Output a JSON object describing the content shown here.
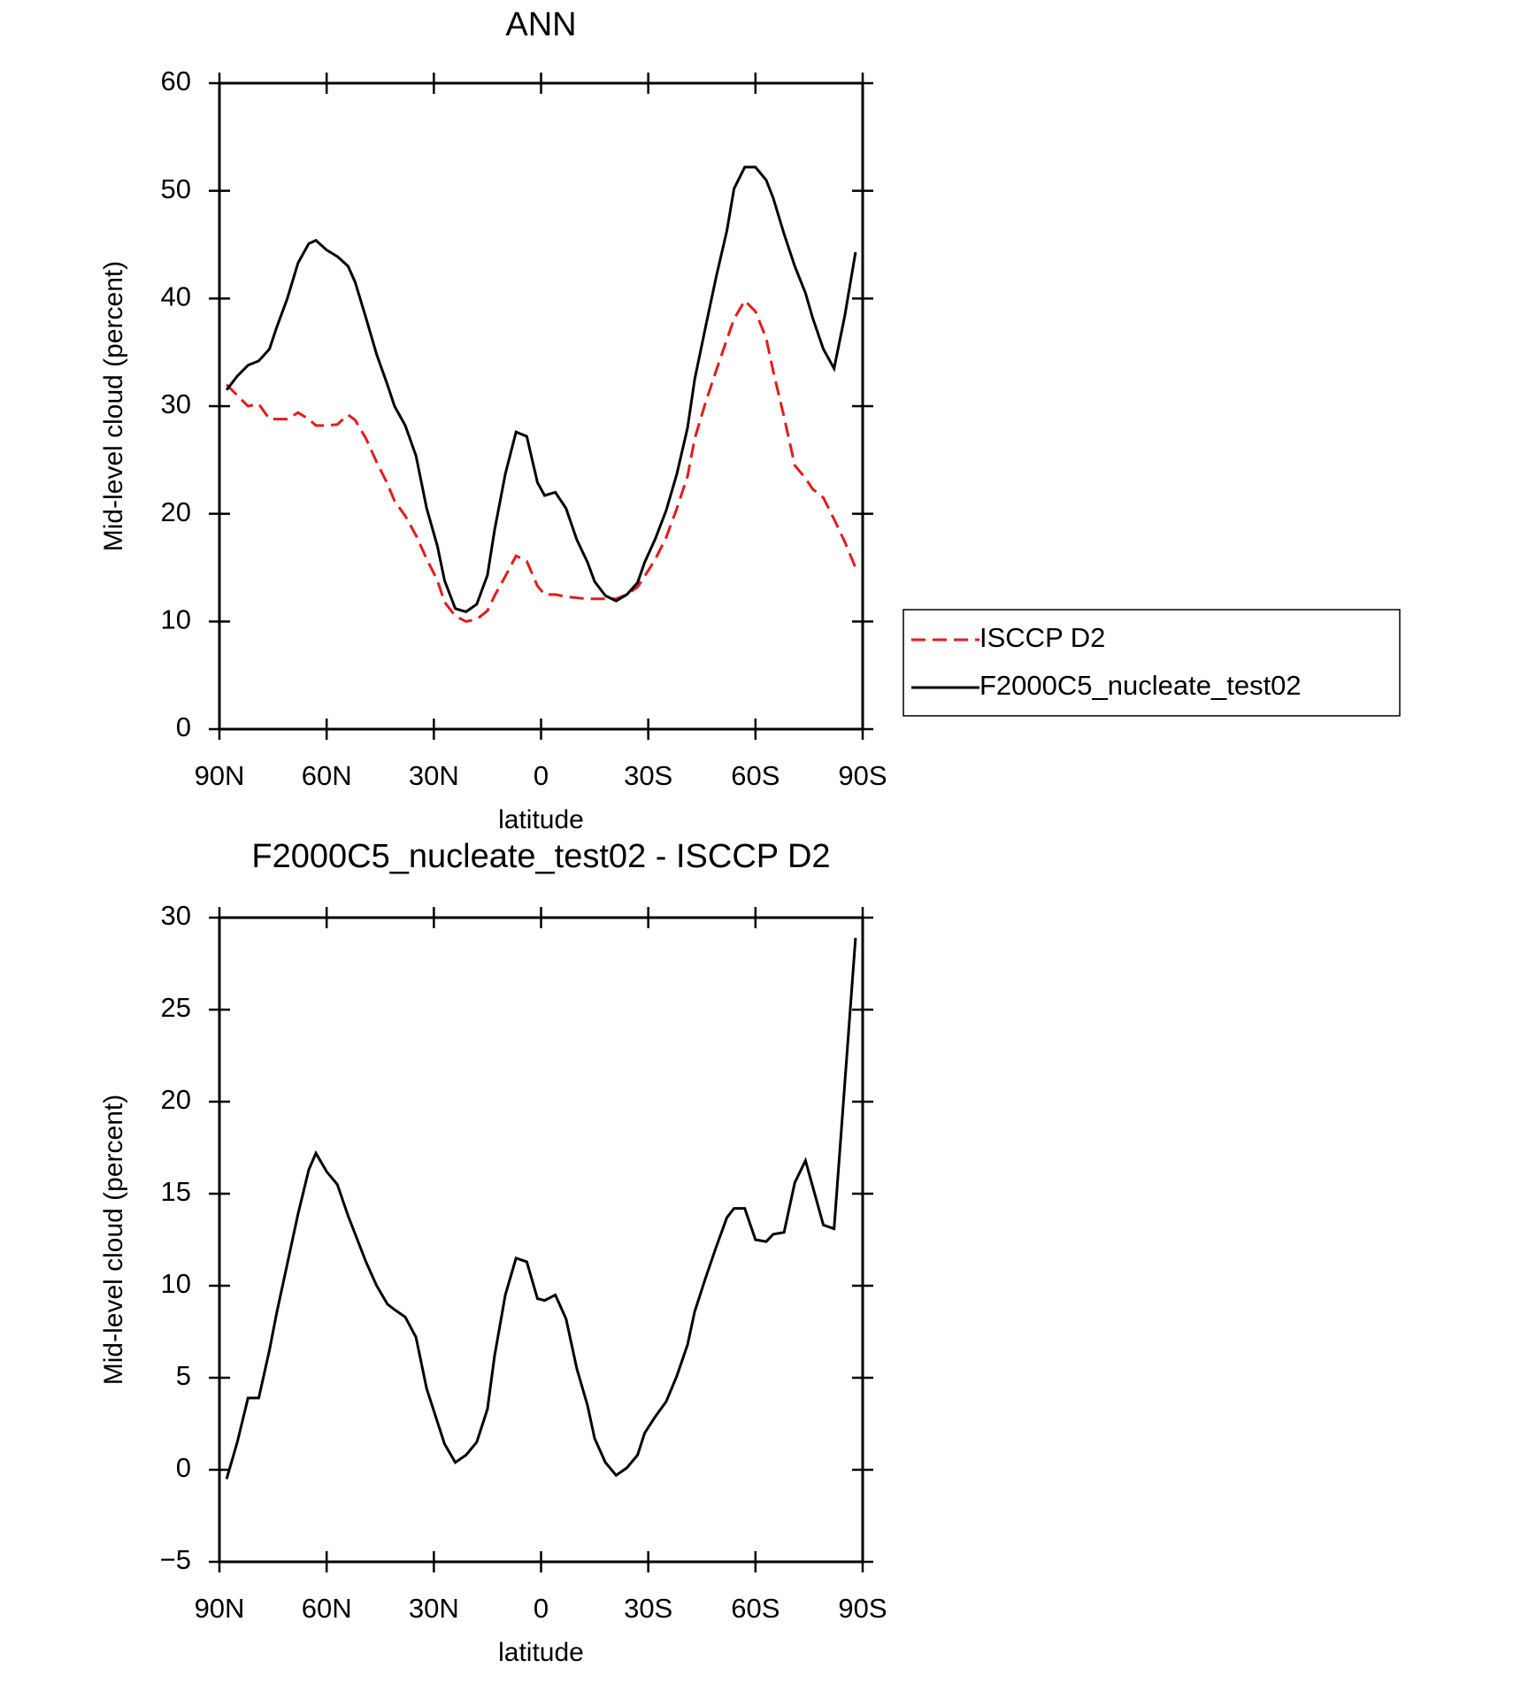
{
  "chart_data": [
    {
      "type": "line",
      "title": "ANN",
      "xlabel": "latitude",
      "ylabel": "Mid-level cloud (percent)",
      "x": [
        88,
        85,
        82,
        79,
        76,
        74,
        71,
        68,
        65,
        63,
        60,
        57,
        54,
        52,
        49,
        46,
        43,
        41,
        38,
        35,
        32,
        29,
        27,
        24,
        21,
        18,
        15,
        13,
        10,
        7,
        4,
        1,
        -1,
        -4,
        -7,
        -10,
        -13,
        -15,
        -18,
        -21,
        -24,
        -27,
        -29,
        -32,
        -35,
        -38,
        -41,
        -43,
        -46,
        -49,
        -52,
        -54,
        -57,
        -60,
        -63,
        -65,
        -68,
        -71,
        -74,
        -76,
        -79,
        -82,
        -85,
        -88
      ],
      "series": [
        {
          "name": "ISCCP D2",
          "color": "#e41a1c",
          "dash": true,
          "values": [
            32,
            31,
            30,
            30.2,
            28.8,
            28.8,
            28.8,
            29.4,
            28.8,
            28.2,
            28.2,
            28.3,
            29.2,
            28.7,
            27,
            24.8,
            22.8,
            21.2,
            19.8,
            18,
            15.8,
            13.8,
            11.8,
            10.5,
            10,
            10.2,
            11,
            12.4,
            14.2,
            16.1,
            15.6,
            13.3,
            12.5,
            12.5,
            12.3,
            12.2,
            12.1,
            12.1,
            12.1,
            12.1,
            12.5,
            13.2,
            14.2,
            15.8,
            17.8,
            20.5,
            23.5,
            27,
            30.3,
            33.3,
            36.2,
            38.1,
            39.8,
            38.8,
            36.3,
            33.2,
            29,
            24.5,
            23.3,
            22.3,
            21.5,
            19.5,
            17.4,
            15
          ]
        },
        {
          "name": "F2000C5_nucleate_test02",
          "color": "#000000",
          "dash": false,
          "values": [
            31.5,
            32.8,
            33.8,
            34.2,
            35.3,
            37.3,
            40.0,
            43.3,
            45.1,
            45.4,
            44.5,
            43.9,
            43.0,
            41.5,
            38.2,
            34.8,
            32.0,
            30.0,
            28.2,
            25.4,
            20.5,
            17.0,
            13.8,
            11.2,
            10.9,
            11.6,
            14.3,
            18.5,
            23.7,
            27.6,
            27.2,
            22.9,
            21.7,
            22.0,
            20.5,
            17.6,
            15.5,
            13.7,
            12.4,
            11.9,
            12.5,
            13.6,
            15.5,
            17.7,
            20.3,
            23.7,
            28,
            32.5,
            37.3,
            42,
            46.3,
            50.2,
            52.2,
            52.2,
            51,
            49.3,
            46,
            43,
            40.5,
            38.2,
            35.3,
            33.5,
            38.4,
            44.3
          ]
        }
      ],
      "xlim": [
        90,
        -90
      ],
      "xticks": [
        {
          "value": 90,
          "label": "90N"
        },
        {
          "value": 60,
          "label": "60N"
        },
        {
          "value": 30,
          "label": "30N"
        },
        0,
        {
          "value": -30,
          "label": "30S"
        },
        {
          "value": -60,
          "label": "60S"
        },
        {
          "value": -90,
          "label": "90S"
        }
      ],
      "ylim": [
        0,
        60
      ],
      "yticks": [
        0,
        10,
        20,
        30,
        40,
        50,
        60
      ],
      "legend": "right"
    },
    {
      "type": "line",
      "title": "F2000C5_nucleate_test02 - ISCCP D2",
      "xlabel": "latitude",
      "ylabel": "Mid-level cloud (percent)",
      "x": [
        88,
        85,
        82,
        79,
        76,
        74,
        71,
        68,
        65,
        63,
        60,
        57,
        54,
        52,
        49,
        46,
        43,
        41,
        38,
        35,
        32,
        29,
        27,
        24,
        21,
        18,
        15,
        13,
        10,
        7,
        4,
        1,
        -1,
        -4,
        -7,
        -10,
        -13,
        -15,
        -18,
        -21,
        -24,
        -27,
        -29,
        -32,
        -35,
        -38,
        -41,
        -43,
        -46,
        -49,
        -52,
        -54,
        -57,
        -60,
        -63,
        -65,
        -68,
        -71,
        -74,
        -76,
        -79,
        -82,
        -85,
        -88
      ],
      "series": [
        {
          "color": "#000000",
          "dash": false,
          "values": [
            -0.5,
            1.5,
            3.9,
            3.9,
            6.5,
            8.5,
            11.2,
            13.9,
            16.3,
            17.2,
            16.2,
            15.5,
            13.8,
            12.8,
            11.3,
            10,
            9,
            8.7,
            8.3,
            7.2,
            4.4,
            2.6,
            1.4,
            0.4,
            0.8,
            1.5,
            3.3,
            6.2,
            9.5,
            11.5,
            11.3,
            9.3,
            9.2,
            9.5,
            8.2,
            5.5,
            3.5,
            1.7,
            0.4,
            -0.3,
            0.1,
            0.8,
            2,
            2.9,
            3.7,
            5.1,
            6.8,
            8.6,
            10.4,
            12.1,
            13.7,
            14.2,
            14.2,
            12.5,
            12.4,
            12.8,
            12.9,
            15.6,
            16.8,
            15.4,
            13.3,
            13.1,
            21,
            28.9
          ]
        }
      ],
      "xlim": [
        90,
        -90
      ],
      "xticks": [
        {
          "value": 90,
          "label": "90N"
        },
        {
          "value": 60,
          "label": "60N"
        },
        {
          "value": 30,
          "label": "30N"
        },
        0,
        {
          "value": -30,
          "label": "30S"
        },
        {
          "value": -60,
          "label": "60S"
        },
        {
          "value": -90,
          "label": "90S"
        }
      ],
      "ylim": [
        -5,
        30
      ],
      "yticks": [
        {
          "value": -5,
          "label": "−5"
        },
        0,
        5,
        10,
        15,
        20,
        25,
        30
      ]
    }
  ]
}
